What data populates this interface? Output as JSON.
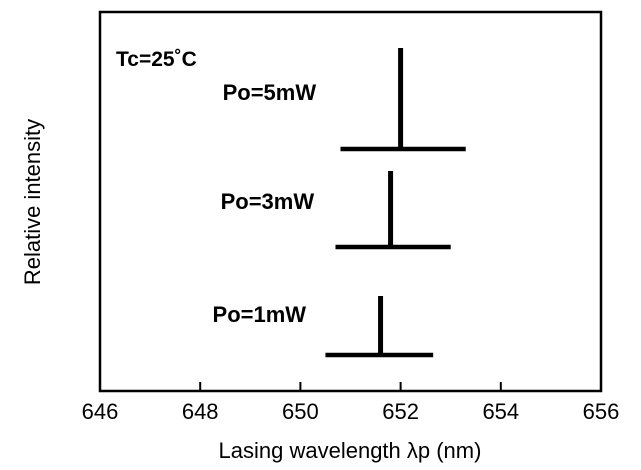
{
  "chart_data": {
    "type": "spectrum-stick",
    "xlabel": "Lasing wavelength λp (nm)",
    "ylabel": "Relative intensity",
    "xlim": [
      646,
      656
    ],
    "xticks": [
      "646",
      "648",
      "650",
      "652",
      "654",
      "656"
    ],
    "annotation": "Tc=25˚C",
    "grid": false,
    "series": [
      {
        "name": "Po=5mW",
        "peak_wavelength": 652.0,
        "baseline_range": [
          650.8,
          653.3
        ],
        "relative_intensity": 1.0
      },
      {
        "name": "Po=3mW",
        "peak_wavelength": 651.8,
        "baseline_range": [
          650.7,
          653.0
        ],
        "relative_intensity": 1.0
      },
      {
        "name": "Po=1mW",
        "peak_wavelength": 651.6,
        "baseline_range": [
          650.5,
          652.65
        ],
        "relative_intensity": 1.0
      }
    ]
  }
}
